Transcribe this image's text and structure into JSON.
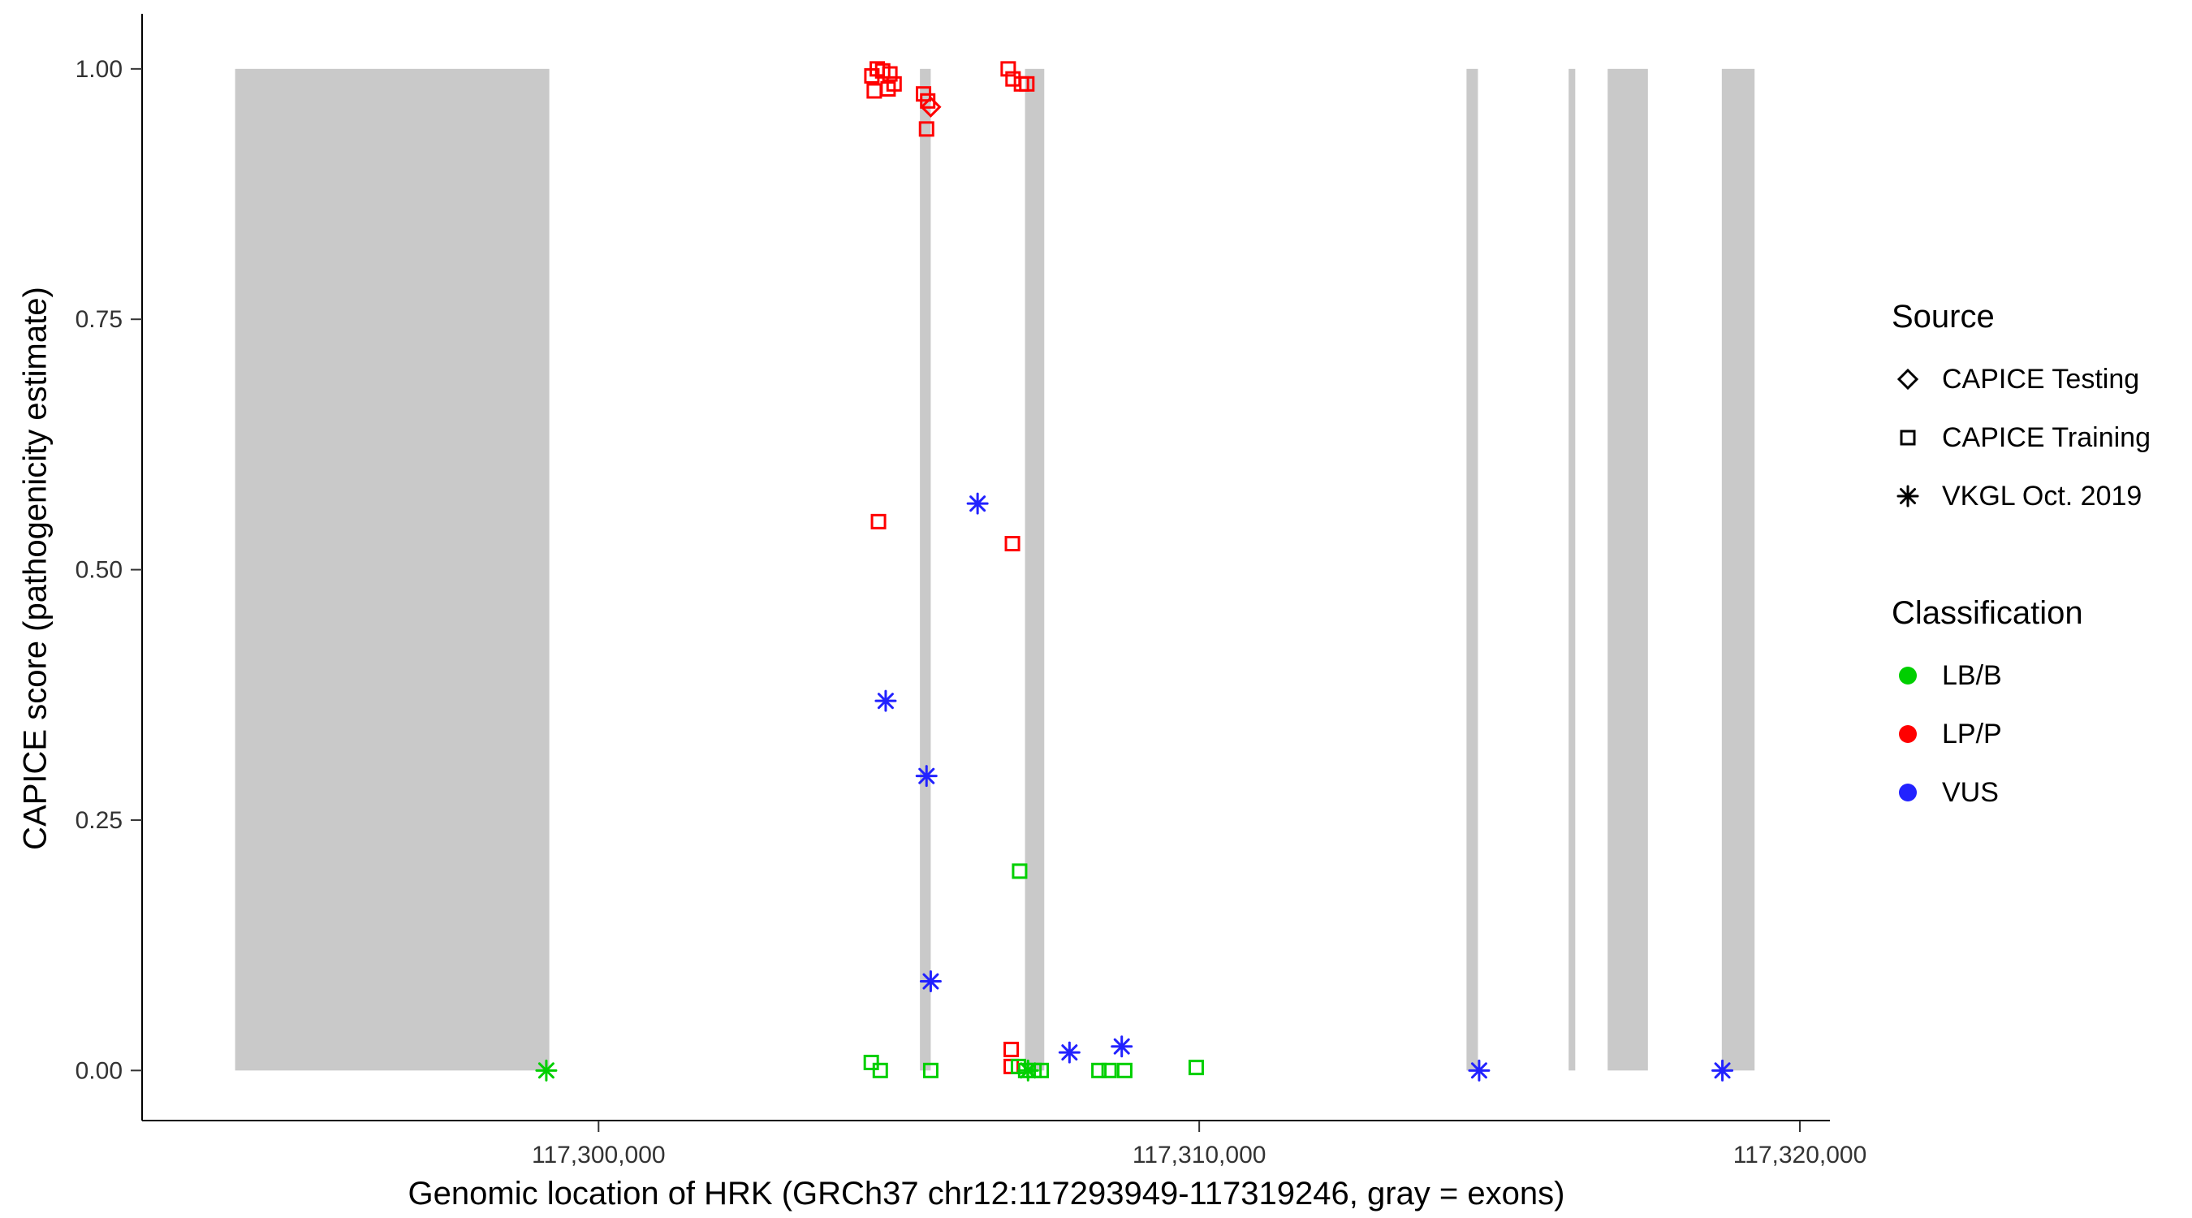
{
  "chart_data": {
    "type": "scatter",
    "title": "",
    "xlabel": "Genomic location of HRK (GRCh37 chr12:117293949-117319246, gray = exons)",
    "ylabel": "CAPICE score (pathogenicity estimate)",
    "xlim": [
      117292400,
      117320500
    ],
    "ylim": [
      -0.05,
      1.055
    ],
    "grid": false,
    "legend_position": "right",
    "x_ticks": [
      {
        "value": 117300000,
        "label": "117,300,000"
      },
      {
        "value": 117310000,
        "label": "117,310,000"
      },
      {
        "value": 117320000,
        "label": "117,320,000"
      }
    ],
    "y_ticks": [
      {
        "value": 0.0,
        "label": "0.00"
      },
      {
        "value": 0.25,
        "label": "0.25"
      },
      {
        "value": 0.5,
        "label": "0.50"
      },
      {
        "value": 0.75,
        "label": "0.75"
      },
      {
        "value": 1.0,
        "label": "1.00"
      }
    ],
    "exon_color": "#c9c9c9",
    "exons": [
      [
        117293949,
        117299180
      ],
      [
        117305350,
        117305530
      ],
      [
        117307100,
        117307420
      ],
      [
        117314450,
        117314640
      ],
      [
        117316150,
        117316260
      ],
      [
        117316800,
        117317470
      ],
      [
        117318700,
        117319246
      ]
    ],
    "colors": {
      "LB/B": "#00cf00",
      "LP/P": "#ff0000",
      "VUS": "#2222ff"
    },
    "shapes": {
      "CAPICE Testing": "diamond",
      "CAPICE Training": "square",
      "VKGL Oct. 2019": "asterisk"
    },
    "points": [
      {
        "x": 117304550,
        "y": 0.993,
        "source": "CAPICE Training",
        "class": "LP/P"
      },
      {
        "x": 117304640,
        "y": 1.0,
        "source": "CAPICE Training",
        "class": "LP/P"
      },
      {
        "x": 117304730,
        "y": 0.998,
        "source": "CAPICE Training",
        "class": "LP/P"
      },
      {
        "x": 117304850,
        "y": 0.995,
        "source": "CAPICE Training",
        "class": "LP/P"
      },
      {
        "x": 117304920,
        "y": 0.985,
        "source": "CAPICE Training",
        "class": "LP/P"
      },
      {
        "x": 117304590,
        "y": 0.978,
        "source": "CAPICE Training",
        "class": "LP/P"
      },
      {
        "x": 117304820,
        "y": 0.98,
        "source": "CAPICE Training",
        "class": "LP/P"
      },
      {
        "x": 117305410,
        "y": 0.975,
        "source": "CAPICE Training",
        "class": "LP/P"
      },
      {
        "x": 117305480,
        "y": 0.968,
        "source": "CAPICE Training",
        "class": "LP/P"
      },
      {
        "x": 117305530,
        "y": 0.962,
        "source": "CAPICE Testing",
        "class": "LP/P"
      },
      {
        "x": 117305460,
        "y": 0.94,
        "source": "CAPICE Training",
        "class": "LP/P"
      },
      {
        "x": 117306820,
        "y": 1.0,
        "source": "CAPICE Training",
        "class": "LP/P"
      },
      {
        "x": 117306900,
        "y": 0.99,
        "source": "CAPICE Training",
        "class": "LP/P"
      },
      {
        "x": 117307040,
        "y": 0.985,
        "source": "CAPICE Training",
        "class": "LP/P"
      },
      {
        "x": 117307130,
        "y": 0.985,
        "source": "CAPICE Training",
        "class": "LP/P"
      },
      {
        "x": 117304660,
        "y": 0.548,
        "source": "CAPICE Training",
        "class": "LP/P"
      },
      {
        "x": 117306890,
        "y": 0.526,
        "source": "CAPICE Training",
        "class": "LP/P"
      },
      {
        "x": 117306870,
        "y": 0.021,
        "source": "CAPICE Training",
        "class": "LP/P"
      },
      {
        "x": 117306870,
        "y": 0.004,
        "source": "CAPICE Training",
        "class": "LP/P"
      },
      {
        "x": 117306310,
        "y": 0.566,
        "source": "VKGL Oct. 2019",
        "class": "VUS"
      },
      {
        "x": 117304780,
        "y": 0.369,
        "source": "VKGL Oct. 2019",
        "class": "VUS"
      },
      {
        "x": 117305460,
        "y": 0.294,
        "source": "VKGL Oct. 2019",
        "class": "VUS"
      },
      {
        "x": 117305530,
        "y": 0.089,
        "source": "VKGL Oct. 2019",
        "class": "VUS"
      },
      {
        "x": 117307840,
        "y": 0.018,
        "source": "VKGL Oct. 2019",
        "class": "VUS"
      },
      {
        "x": 117308710,
        "y": 0.024,
        "source": "VKGL Oct. 2019",
        "class": "VUS"
      },
      {
        "x": 117314660,
        "y": 0.0,
        "source": "VKGL Oct. 2019",
        "class": "VUS"
      },
      {
        "x": 117318710,
        "y": 0.0,
        "source": "VKGL Oct. 2019",
        "class": "VUS"
      },
      {
        "x": 117299130,
        "y": 0.0,
        "source": "VKGL Oct. 2019",
        "class": "LB/B"
      },
      {
        "x": 117304540,
        "y": 0.008,
        "source": "CAPICE Training",
        "class": "LB/B"
      },
      {
        "x": 117304690,
        "y": 0.0,
        "source": "CAPICE Training",
        "class": "LB/B"
      },
      {
        "x": 117305530,
        "y": 0.0,
        "source": "CAPICE Training",
        "class": "LB/B"
      },
      {
        "x": 117307010,
        "y": 0.199,
        "source": "CAPICE Training",
        "class": "LB/B"
      },
      {
        "x": 117306990,
        "y": 0.004,
        "source": "CAPICE Training",
        "class": "LB/B"
      },
      {
        "x": 117307150,
        "y": 0.0,
        "source": "VKGL Oct. 2019",
        "class": "LB/B"
      },
      {
        "x": 117307110,
        "y": 0.0,
        "source": "CAPICE Training",
        "class": "LB/B"
      },
      {
        "x": 117307250,
        "y": 0.0,
        "source": "CAPICE Training",
        "class": "LB/B"
      },
      {
        "x": 117307370,
        "y": 0.0,
        "source": "CAPICE Training",
        "class": "LB/B"
      },
      {
        "x": 117308330,
        "y": 0.0,
        "source": "CAPICE Training",
        "class": "LB/B"
      },
      {
        "x": 117308500,
        "y": 0.0,
        "source": "CAPICE Training",
        "class": "LB/B"
      },
      {
        "x": 117308760,
        "y": 0.0,
        "source": "CAPICE Training",
        "class": "LB/B"
      },
      {
        "x": 117309950,
        "y": 0.003,
        "source": "CAPICE Training",
        "class": "LB/B"
      }
    ]
  },
  "legend": {
    "source": {
      "title": "Source",
      "items": [
        {
          "shape": "diamond",
          "label": "CAPICE Testing"
        },
        {
          "shape": "square",
          "label": "CAPICE Training"
        },
        {
          "shape": "asterisk",
          "label": "VKGL Oct. 2019"
        }
      ]
    },
    "classification": {
      "title": "Classification",
      "items": [
        {
          "color": "#00cf00",
          "label": "LB/B"
        },
        {
          "color": "#ff0000",
          "label": "LP/P"
        },
        {
          "color": "#2222ff",
          "label": "VUS"
        }
      ]
    }
  }
}
